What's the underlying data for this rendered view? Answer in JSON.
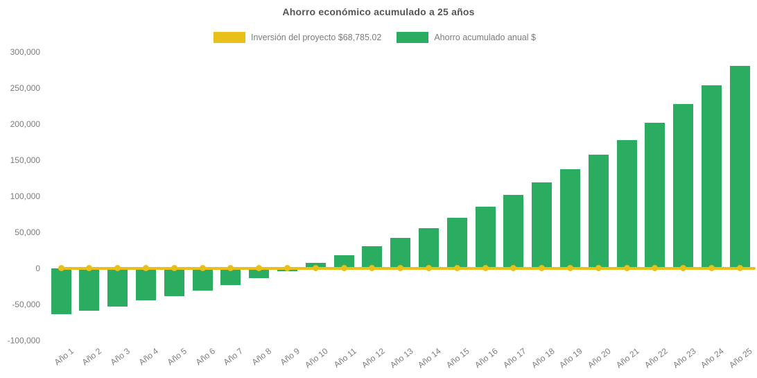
{
  "chart_data": {
    "type": "bar",
    "title": "Ahorro económico acumulado a 25 años",
    "categories": [
      "Año 1",
      "Año 2",
      "Año 3",
      "Año 4",
      "Año 5",
      "Año 6",
      "Año 7",
      "Año 8",
      "Año 9",
      "Año 10",
      "Año 11",
      "Año 12",
      "Año 13",
      "Año 14",
      "Año 15",
      "Año 16",
      "Año 17",
      "Año 18",
      "Año 19",
      "Año 20",
      "Año 21",
      "Año 22",
      "Año 23",
      "Año 24",
      "Año 25"
    ],
    "series": [
      {
        "name": "Inversión del proyecto $68,785.02",
        "type": "line",
        "color": "#e8c019",
        "marker": "circle",
        "values": [
          0,
          0,
          0,
          0,
          0,
          0,
          0,
          0,
          0,
          0,
          0,
          0,
          0,
          0,
          0,
          0,
          0,
          0,
          0,
          0,
          0,
          0,
          0,
          0,
          0
        ]
      },
      {
        "name": "Ahorro acumulado anual $",
        "type": "bar",
        "color": "#2bad61",
        "values": [
          -64000,
          -59500,
          -53000,
          -45000,
          -38500,
          -31500,
          -23500,
          -14000,
          -4000,
          7000,
          17500,
          30000,
          42000,
          55000,
          69500,
          85000,
          101500,
          119000,
          137000,
          157000,
          177500,
          201000,
          227000,
          253000,
          280000
        ]
      }
    ],
    "ylim": [
      -100000,
      300000
    ],
    "yticks": [
      300000,
      250000,
      200000,
      150000,
      100000,
      50000,
      0,
      -50000,
      -100000
    ],
    "ytick_labels": [
      "300,000",
      "250,000",
      "200,000",
      "150,000",
      "100,000",
      "50,000",
      "0",
      "-50,000",
      "-100,000"
    ],
    "grid": false,
    "legend_position": "top-center",
    "x_label_rotation_deg": -38
  }
}
